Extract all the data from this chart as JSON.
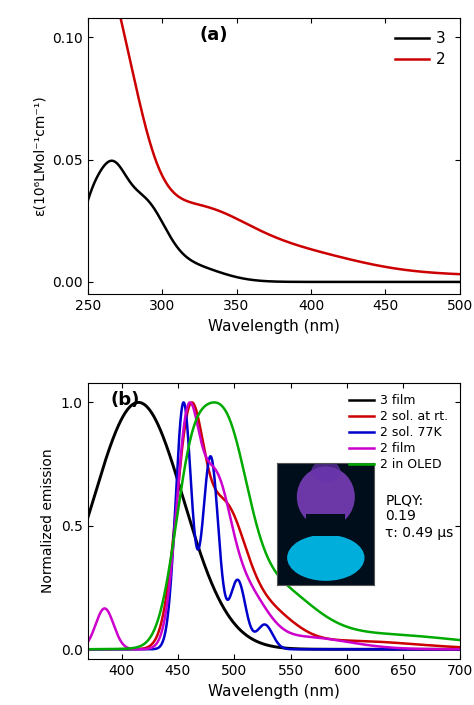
{
  "panel_a": {
    "title": "(a)",
    "xlabel": "Wavelength (nm)",
    "ylabel": "ε(10⁶LMol⁻¹cm⁻¹)",
    "xlim": [
      250,
      500
    ],
    "ylim": [
      -0.005,
      0.108
    ],
    "yticks": [
      0.0,
      0.05,
      0.1
    ],
    "xticks": [
      250,
      300,
      350,
      400,
      450,
      500
    ],
    "legend": [
      {
        "label": "3",
        "color": "#000000"
      },
      {
        "label": "2",
        "color": "#cc0000"
      }
    ]
  },
  "panel_b": {
    "title": "(b)",
    "xlabel": "Wavelength (nm)",
    "ylabel": "Normalized emission",
    "xlim": [
      370,
      700
    ],
    "ylim": [
      -0.04,
      1.08
    ],
    "yticks": [
      0.0,
      0.5,
      1.0
    ],
    "xticks": [
      400,
      450,
      500,
      550,
      600,
      650,
      700
    ],
    "legend": [
      {
        "label": "3 film",
        "color": "#000000"
      },
      {
        "label": "2 sol. at rt.",
        "color": "#cc0000"
      },
      {
        "label": "2 sol. 77K",
        "color": "#0000cc"
      },
      {
        "label": "2 film",
        "color": "#cc00cc"
      },
      {
        "label": "2 in OLED",
        "color": "#00aa00"
      }
    ],
    "annotation_text": "PLQY:\n0.19\nτ: 0.49 μs"
  },
  "background_color": "#ffffff",
  "linewidth": 1.8
}
